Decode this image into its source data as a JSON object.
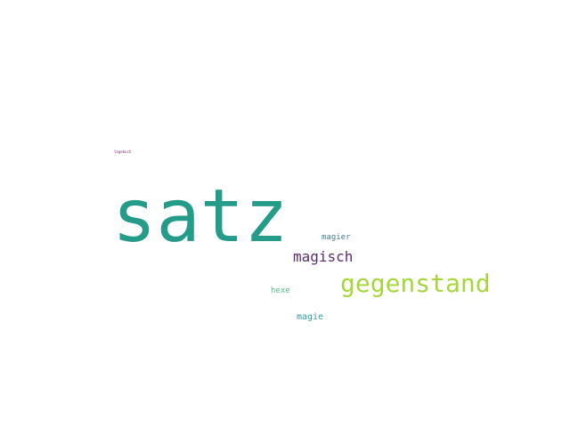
{
  "word_cloud": {
    "background": "#ffffff",
    "words": [
      {
        "id": "satz",
        "text": "satz",
        "color": "#259b8a"
      },
      {
        "id": "gegenstand",
        "text": "gegenstand",
        "color": "#a6d83d"
      },
      {
        "id": "magisch",
        "text": "magisch",
        "color": "#5b2c6f"
      },
      {
        "id": "magier",
        "text": "magier",
        "color": "#3e7f9c"
      },
      {
        "id": "hexe",
        "text": "hexe",
        "color": "#52c38c"
      },
      {
        "id": "magie",
        "text": "magie",
        "color": "#2f9d9a"
      },
      {
        "id": "tagebuch",
        "text": "tagebuch",
        "color": "#8b2f7f"
      }
    ]
  }
}
